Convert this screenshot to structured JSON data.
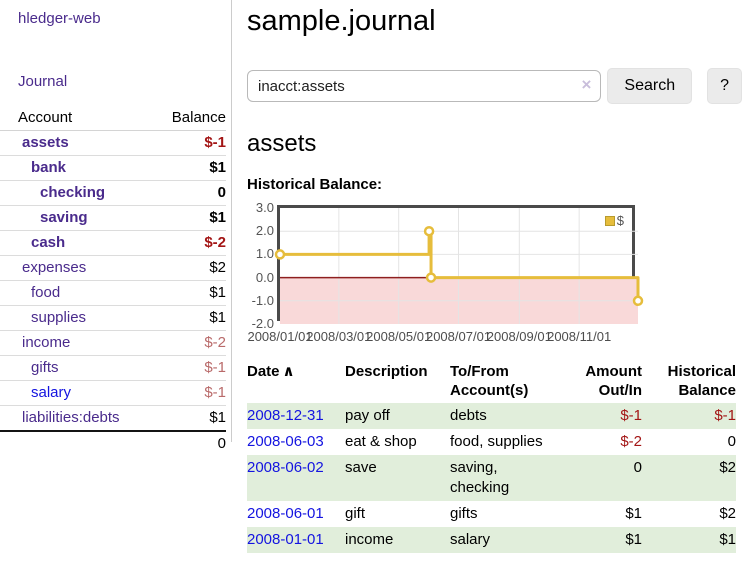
{
  "app": {
    "title": "hledger-web",
    "nav_journal": "Journal"
  },
  "sidebar": {
    "headers": {
      "account": "Account",
      "balance": "Balance"
    },
    "rows": [
      {
        "account": "assets",
        "balance": "$-1",
        "indent": 0,
        "bold": true,
        "balance_class": "neg"
      },
      {
        "account": "bank",
        "balance": "$1",
        "indent": 1,
        "bold": true,
        "balance_class": ""
      },
      {
        "account": "checking",
        "balance": "0",
        "indent": 2,
        "bold": true,
        "balance_class": ""
      },
      {
        "account": "saving",
        "balance": "$1",
        "indent": 2,
        "bold": true,
        "balance_class": ""
      },
      {
        "account": "cash",
        "balance": "$-2",
        "indent": 1,
        "bold": true,
        "balance_class": "neg"
      },
      {
        "account": "expenses",
        "balance": "$2",
        "indent": 0,
        "bold": false,
        "balance_class": ""
      },
      {
        "account": "food",
        "balance": "$1",
        "indent": 1,
        "bold": false,
        "balance_class": ""
      },
      {
        "account": "supplies",
        "balance": "$1",
        "indent": 1,
        "bold": false,
        "balance_class": ""
      },
      {
        "account": "income",
        "balance": "$-2",
        "indent": 0,
        "bold": false,
        "balance_class": "dim"
      },
      {
        "account": "gifts",
        "balance": "$-1",
        "indent": 1,
        "bold": false,
        "balance_class": "dim"
      },
      {
        "account": "salary",
        "balance": "$-1",
        "indent": 1,
        "bold": false,
        "balance_class": "dim",
        "link_blue": true
      },
      {
        "account": "liabilities:debts",
        "balance": "$1",
        "indent": 0,
        "bold": false,
        "balance_class": ""
      }
    ],
    "total": "0"
  },
  "main": {
    "title": "sample.journal",
    "search": {
      "value": "inacct:assets",
      "clear_icon": "×",
      "button_label": "Search",
      "help_label": "?"
    },
    "account_heading": "assets",
    "chart_label": "Historical Balance:",
    "register": {
      "headers": {
        "date": "Date",
        "sort_icon": "∧",
        "description": "Description",
        "accounts_line1": "To/From",
        "accounts_line2": "Account(s)",
        "amount_line1": "Amount",
        "amount_line2": "Out/In",
        "balance_line1": "Historical",
        "balance_line2": "Balance"
      },
      "rows": [
        {
          "date": "2008-12-31",
          "description": "pay off",
          "accounts": [
            "debts"
          ],
          "amount": "$-1",
          "balance": "$-1"
        },
        {
          "date": "2008-06-03",
          "description": "eat & shop",
          "accounts": [
            "food, supplies"
          ],
          "amount": "$-2",
          "balance": "0"
        },
        {
          "date": "2008-06-02",
          "description": "save",
          "accounts": [
            "saving,",
            "checking"
          ],
          "amount": "0",
          "balance": "$2"
        },
        {
          "date": "2008-06-01",
          "description": "gift",
          "accounts": [
            "gifts"
          ],
          "amount": "$1",
          "balance": "$2"
        },
        {
          "date": "2008-01-01",
          "description": "income",
          "accounts": [
            "salary"
          ],
          "amount": "$1",
          "balance": "$1"
        }
      ]
    }
  },
  "chart_data": {
    "type": "line",
    "step": true,
    "title": "Historical Balance:",
    "series": [
      {
        "name": "$",
        "points": [
          [
            "2008-01-01",
            1
          ],
          [
            "2008-06-01",
            2
          ],
          [
            "2008-06-03",
            0
          ],
          [
            "2008-12-31",
            -1
          ]
        ]
      }
    ],
    "xrange": [
      "2008-01-01",
      "2008-12-31"
    ],
    "ylim": [
      -2,
      3
    ],
    "yticks": [
      {
        "v": 3,
        "label": "3.0"
      },
      {
        "v": 2,
        "label": "2.0"
      },
      {
        "v": 1,
        "label": "1.0"
      },
      {
        "v": 0,
        "label": "0.0"
      },
      {
        "v": -1,
        "label": "-1.0"
      },
      {
        "v": -2,
        "label": "-2.0"
      }
    ],
    "xticks": [
      {
        "d": "2008-01-01",
        "label": "2008/01/01"
      },
      {
        "d": "2008-03-01",
        "label": "2008/03/01"
      },
      {
        "d": "2008-05-01",
        "label": "2008/05/01"
      },
      {
        "d": "2008-07-01",
        "label": "2008/07/01"
      },
      {
        "d": "2008-09-01",
        "label": "2008/09/01"
      },
      {
        "d": "2008-11-01",
        "label": "2008/11/01"
      }
    ],
    "legend": {
      "position": "top-right",
      "label": "$"
    },
    "grid": true,
    "shade_negative_region": true,
    "colors": {
      "line": "#e6bd3c",
      "marker_fill": "#ffffff",
      "negative_fill": "#f9d9d9",
      "zero_line": "#8e1f1f",
      "grid": "#e4e4e4",
      "tick_text": "#545454"
    }
  },
  "colors": {
    "link_purple": "#4a2b8c",
    "link_blue": "#1414e0",
    "negative": "#a31515",
    "negative_muted": "#b96a6a",
    "row_stripe_green": "#e1eedb",
    "button_bg": "#ebebeb",
    "divider": "#cccccc",
    "chart_border": "#4a4a4a"
  }
}
